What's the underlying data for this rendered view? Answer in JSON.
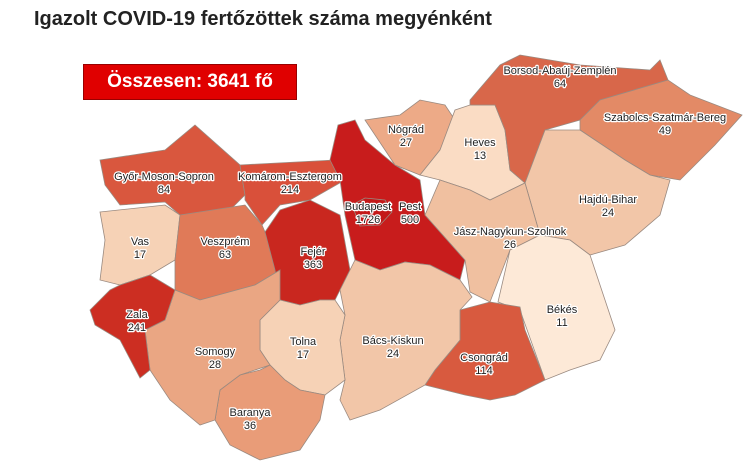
{
  "title": "Igazolt COVID-19 fertőzöttek száma megyénként",
  "total_label": "Összesen: 3641 fő",
  "total_color": "#e00000",
  "counties": [
    {
      "name": "Győr-Moson-Sopron",
      "count": 84,
      "color": "#d9573e"
    },
    {
      "name": "Komárom-Esztergom",
      "count": 214,
      "color": "#d9503a"
    },
    {
      "name": "Vas",
      "count": 17,
      "color": "#f6d2b6"
    },
    {
      "name": "Veszprém",
      "count": 63,
      "color": "#e07a58"
    },
    {
      "name": "Fejér",
      "count": 363,
      "color": "#c9271f"
    },
    {
      "name": "Pest",
      "count": 500,
      "color": "#c81c1c"
    },
    {
      "name": "Budapest",
      "count": 1726,
      "color": "#c41818"
    },
    {
      "name": "Nógrád",
      "count": 27,
      "color": "#edaa87"
    },
    {
      "name": "Heves",
      "count": 13,
      "color": "#fadcc4"
    },
    {
      "name": "Borsod-Abaúj-Zemplén",
      "count": 64,
      "color": "#d8674a"
    },
    {
      "name": "Szabolcs-Szatmár-Bereg",
      "count": 49,
      "color": "#e38a66"
    },
    {
      "name": "Hajdú-Bihar",
      "count": 24,
      "color": "#f2c6a8"
    },
    {
      "name": "Jász-Nagykun-Szolnok",
      "count": 26,
      "color": "#f0c0a0"
    },
    {
      "name": "Békés",
      "count": 11,
      "color": "#fde9d7"
    },
    {
      "name": "Csongrád",
      "count": 114,
      "color": "#d85a3f"
    },
    {
      "name": "Bács-Kiskun",
      "count": 24,
      "color": "#f2c6a8"
    },
    {
      "name": "Tolna",
      "count": 17,
      "color": "#f6d2b6"
    },
    {
      "name": "Baranya",
      "count": 36,
      "color": "#e99c78"
    },
    {
      "name": "Somogy",
      "count": 28,
      "color": "#eaa683"
    },
    {
      "name": "Zala",
      "count": 241,
      "color": "#cc2e22"
    }
  ]
}
